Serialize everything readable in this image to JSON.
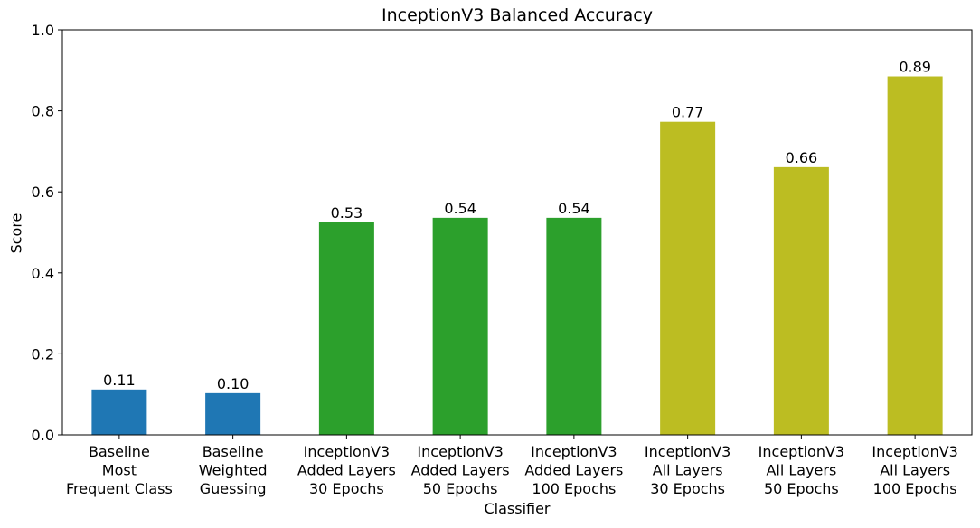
{
  "chart_data": {
    "type": "bar",
    "title": "InceptionV3 Balanced Accuracy",
    "xlabel": "Classifier",
    "ylabel": "Score",
    "ylim": [
      0,
      1.0
    ],
    "yticks": [
      "0.0",
      "0.2",
      "0.4",
      "0.6",
      "0.8",
      "1.0"
    ],
    "grid": false,
    "categories": [
      "Baseline\nMost\nFrequent Class",
      "Baseline\nWeighted\nGuessing",
      "InceptionV3\nAdded Layers\n30 Epochs",
      "InceptionV3\nAdded Layers\n50 Epochs",
      "InceptionV3\nAdded Layers\n100 Epochs",
      "InceptionV3\nAll Layers\n30 Epochs",
      "InceptionV3\nAll Layers\n50 Epochs",
      "InceptionV3\nAll Layers\n100 Epochs"
    ],
    "values": [
      0.112,
      0.103,
      0.525,
      0.536,
      0.536,
      0.773,
      0.661,
      0.885
    ],
    "value_labels": [
      "0.11",
      "0.10",
      "0.53",
      "0.54",
      "0.54",
      "0.77",
      "0.66",
      "0.89"
    ],
    "bar_colors": [
      "#1f77b4",
      "#1f77b4",
      "#2ca02c",
      "#2ca02c",
      "#2ca02c",
      "#bcbd22",
      "#bcbd22",
      "#bcbd22"
    ]
  }
}
